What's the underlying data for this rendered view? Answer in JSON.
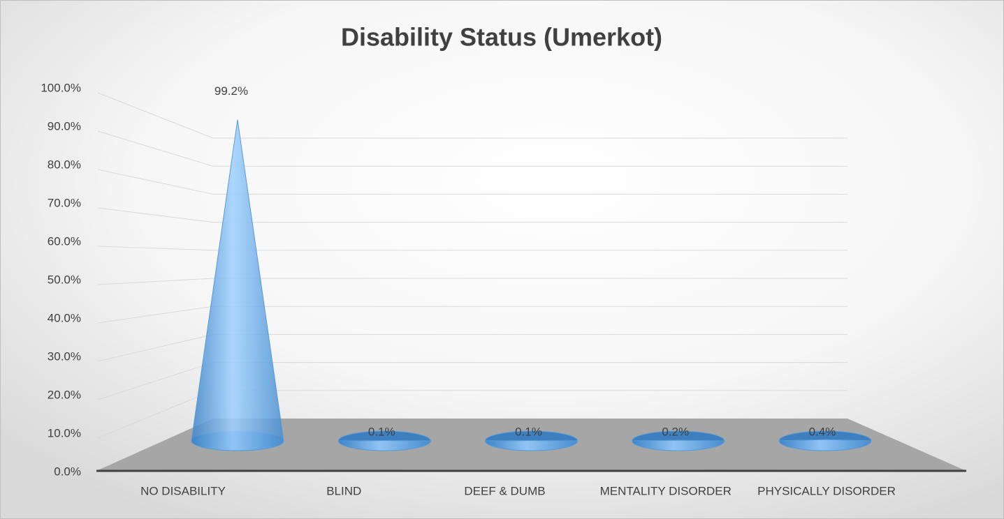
{
  "chart_data": {
    "type": "cone3d",
    "title": "Disability Status (Umerkot)",
    "categories": [
      "NO DISABILITY",
      "BLIND",
      "DEEF & DUMB",
      "MENTALITY DISORDER",
      "PHYSICALLY DISORDER"
    ],
    "values": [
      99.2,
      0.1,
      0.1,
      0.2,
      0.4
    ],
    "value_labels": [
      "99.2%",
      "0.1%",
      "0.1%",
      "0.2%",
      "0.4%"
    ],
    "color": "#5b9bd5",
    "ylim": [
      0,
      100
    ],
    "yticks": [
      {
        "value": 0,
        "label": "0.0%"
      },
      {
        "value": 10,
        "label": "10.0%"
      },
      {
        "value": 20,
        "label": "20.0%"
      },
      {
        "value": 30,
        "label": "30.0%"
      },
      {
        "value": 40,
        "label": "40.0%"
      },
      {
        "value": 50,
        "label": "50.0%"
      },
      {
        "value": 60,
        "label": "60.0%"
      },
      {
        "value": 70,
        "label": "70.0%"
      },
      {
        "value": 80,
        "label": "80.0%"
      },
      {
        "value": 90,
        "label": "90.0%"
      },
      {
        "value": 100,
        "label": "100.0%"
      }
    ],
    "grid": true
  }
}
